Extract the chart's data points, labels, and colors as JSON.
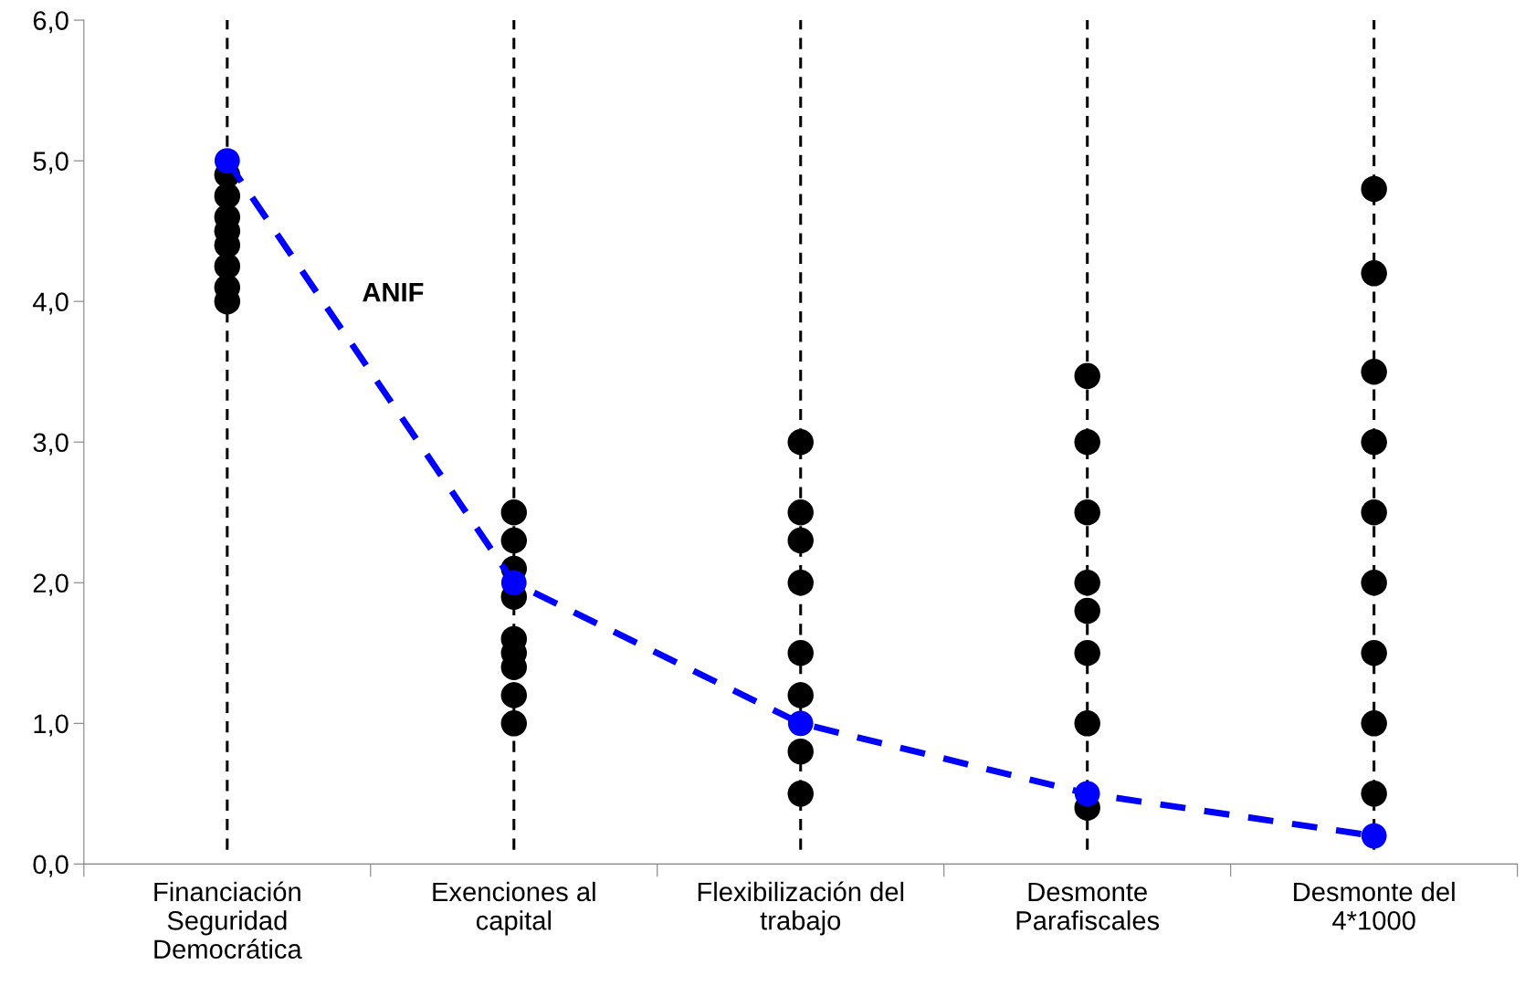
{
  "chart_data": {
    "type": "scatter",
    "categories": [
      "Financiación\nSeguridad\nDemocrática",
      "Exenciones al\ncapital",
      "Flexibilización del\ntrabajo",
      "Desmonte\nParafiscales",
      "Desmonte del\n4*1000"
    ],
    "ylim": [
      0,
      6
    ],
    "yticks": [
      {
        "value": 0,
        "label": "0,0"
      },
      {
        "value": 1,
        "label": "1,0"
      },
      {
        "value": 2,
        "label": "2,0"
      },
      {
        "value": 3,
        "label": "3,0"
      },
      {
        "value": 4,
        "label": "4,0"
      },
      {
        "value": 5,
        "label": "5,0"
      },
      {
        "value": 6,
        "label": "6,0"
      }
    ],
    "grid": false,
    "legend": false,
    "ref_lines": [
      {
        "axis": "x",
        "value": "Financiación\nSeguridad\nDemocrática",
        "color": "#000000",
        "line_style": "dashed"
      },
      {
        "axis": "x",
        "value": "Exenciones al\ncapital",
        "color": "#000000",
        "line_style": "dashed"
      },
      {
        "axis": "x",
        "value": "Flexibilización del\ntrabajo",
        "color": "#000000",
        "line_style": "dashed"
      },
      {
        "axis": "x",
        "value": "Desmonte\nParafiscales",
        "color": "#000000",
        "line_style": "dashed"
      },
      {
        "axis": "x",
        "value": "Desmonte del\n4*1000",
        "color": "#000000",
        "line_style": "dashed"
      }
    ],
    "series": [
      {
        "color": "#000000",
        "marker": "circle",
        "x": [
          "Financiación\nSeguridad\nDemocrática",
          "Financiación\nSeguridad\nDemocrática",
          "Financiación\nSeguridad\nDemocrática",
          "Financiación\nSeguridad\nDemocrática",
          "Financiación\nSeguridad\nDemocrática",
          "Financiación\nSeguridad\nDemocrática",
          "Financiación\nSeguridad\nDemocrática",
          "Financiación\nSeguridad\nDemocrática",
          "Exenciones al\ncapital",
          "Exenciones al\ncapital",
          "Exenciones al\ncapital",
          "Exenciones al\ncapital",
          "Exenciones al\ncapital",
          "Exenciones al\ncapital",
          "Exenciones al\ncapital",
          "Exenciones al\ncapital",
          "Exenciones al\ncapital",
          "Flexibilización del\ntrabajo",
          "Flexibilización del\ntrabajo",
          "Flexibilización del\ntrabajo",
          "Flexibilización del\ntrabajo",
          "Flexibilización del\ntrabajo",
          "Flexibilización del\ntrabajo",
          "Flexibilización del\ntrabajo",
          "Flexibilización del\ntrabajo",
          "Desmonte\nParafiscales",
          "Desmonte\nParafiscales",
          "Desmonte\nParafiscales",
          "Desmonte\nParafiscales",
          "Desmonte\nParafiscales",
          "Desmonte\nParafiscales",
          "Desmonte\nParafiscales",
          "Desmonte\nParafiscales",
          "Desmonte del\n4*1000",
          "Desmonte del\n4*1000",
          "Desmonte del\n4*1000",
          "Desmonte del\n4*1000",
          "Desmonte del\n4*1000",
          "Desmonte del\n4*1000",
          "Desmonte del\n4*1000",
          "Desmonte del\n4*1000",
          "Desmonte del\n4*1000"
        ],
        "values": [
          4.9,
          4.75,
          4.6,
          4.5,
          4.4,
          4.25,
          4.1,
          4.0,
          2.5,
          2.3,
          2.1,
          1.9,
          1.6,
          1.5,
          1.4,
          1.2,
          1.0,
          3.0,
          2.5,
          2.3,
          2.0,
          1.5,
          1.2,
          0.8,
          0.5,
          3.47,
          3.0,
          2.5,
          2.0,
          1.8,
          1.5,
          1.0,
          0.4,
          4.8,
          4.2,
          3.5,
          3.0,
          2.5,
          2.0,
          1.5,
          1.0,
          0.5
        ]
      },
      {
        "type": "line",
        "name": "ANIF",
        "color": "#0000ff",
        "line_style": "dashed",
        "marker": "circle",
        "values": [
          5.0,
          2.0,
          1.0,
          0.5,
          0.2
        ]
      }
    ]
  }
}
